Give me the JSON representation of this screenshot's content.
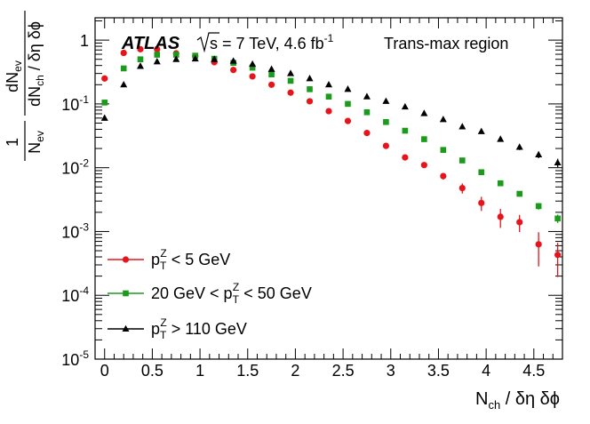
{
  "chart_data": {
    "type": "scatter",
    "experiment": "ATLAS",
    "energy_label": "s = 7 TeV, 4.6 fb",
    "energy_sup": "-1",
    "region_label": "Trans-max region",
    "xlabel": {
      "base": "N",
      "sub": "ch",
      "rest": " / δη δϕ"
    },
    "ylabel": {
      "numerator": "1",
      "denom_base": "N",
      "denom_sub": "ev",
      "frac_num_base": "dN",
      "frac_num_sub": "ev",
      "frac_den_pre": "dN",
      "frac_den_sub": "ch",
      "frac_den_rest": " / δη δϕ"
    },
    "xlim": [
      -0.1,
      4.8
    ],
    "ylim_log10": [
      -5,
      0.35
    ],
    "x_ticks": [
      0,
      0.5,
      1,
      1.5,
      2,
      2.5,
      3,
      3.5,
      4,
      4.5
    ],
    "x_tick_labels": [
      "0",
      "0.5",
      "1",
      "1.5",
      "2",
      "2.5",
      "3",
      "3.5",
      "4",
      "4.5"
    ],
    "y_ticks": [
      {
        "value": 1,
        "label": "1",
        "sup": ""
      },
      {
        "value": 0.1,
        "label": "10",
        "sup": "-1"
      },
      {
        "value": 0.01,
        "label": "10",
        "sup": "-2"
      },
      {
        "value": 0.001,
        "label": "10",
        "sup": "-3"
      },
      {
        "value": 0.0001,
        "label": "10",
        "sup": "-4"
      },
      {
        "value": 1e-05,
        "label": "10",
        "sup": "-5"
      }
    ],
    "x": [
      0,
      0.2,
      0.375,
      0.55,
      0.75,
      0.95,
      1.15,
      1.35,
      1.55,
      1.75,
      1.95,
      2.15,
      2.35,
      2.55,
      2.75,
      2.95,
      3.15,
      3.35,
      3.55,
      3.75,
      3.95,
      4.15,
      4.35,
      4.55,
      4.75
    ],
    "series": [
      {
        "name": "pTZ < 5 GeV",
        "color": "#e8141b",
        "marker": "circle",
        "legend": {
          "pre": "p",
          "sub": "T",
          "sup": "Z",
          "post": " < 5 GeV"
        },
        "values": [
          0.25,
          0.63,
          0.72,
          0.72,
          0.62,
          0.56,
          0.45,
          0.34,
          0.27,
          0.2,
          0.15,
          0.11,
          0.077,
          0.054,
          0.035,
          0.022,
          0.0145,
          0.011,
          0.0074,
          0.0048,
          0.0028,
          0.0017,
          0.0014,
          0.00063,
          0.00043
        ],
        "errors_rel": [
          0.02,
          0.02,
          0.02,
          0.02,
          0.02,
          0.02,
          0.02,
          0.02,
          0.02,
          0.02,
          0.03,
          0.03,
          0.03,
          0.04,
          0.05,
          0.06,
          0.07,
          0.08,
          0.12,
          0.18,
          0.25,
          0.33,
          0.3,
          0.55,
          0.55
        ]
      },
      {
        "name": "20 GeV < pTZ < 50 GeV",
        "color": "#1a9b1a",
        "marker": "square",
        "legend": {
          "pre": "20 GeV < p",
          "sub": "T",
          "sup": "Z",
          "post": " < 50 GeV"
        },
        "values": [
          0.105,
          0.36,
          0.5,
          0.59,
          0.59,
          0.57,
          0.51,
          0.44,
          0.37,
          0.29,
          0.23,
          0.17,
          0.13,
          0.1,
          0.074,
          0.052,
          0.038,
          0.028,
          0.019,
          0.013,
          0.0085,
          0.0057,
          0.0039,
          0.0025,
          0.0016
        ],
        "errors_rel": [
          0.02,
          0.02,
          0.02,
          0.02,
          0.02,
          0.02,
          0.02,
          0.02,
          0.02,
          0.02,
          0.02,
          0.02,
          0.02,
          0.02,
          0.03,
          0.03,
          0.03,
          0.04,
          0.04,
          0.05,
          0.06,
          0.08,
          0.1,
          0.12,
          0.15
        ]
      },
      {
        "name": "pTZ > 110 GeV",
        "color": "#000000",
        "marker": "triangle",
        "legend": {
          "pre": "p",
          "sub": "T",
          "sup": "Z",
          "post": " >  110 GeV"
        },
        "values": [
          0.06,
          0.2,
          0.39,
          0.46,
          0.5,
          0.51,
          0.5,
          0.47,
          0.42,
          0.35,
          0.3,
          0.25,
          0.2,
          0.17,
          0.13,
          0.11,
          0.09,
          0.071,
          0.057,
          0.044,
          0.037,
          0.028,
          0.021,
          0.016,
          0.012
        ],
        "errors_rel": [
          0.05,
          0.03,
          0.02,
          0.02,
          0.02,
          0.02,
          0.02,
          0.02,
          0.02,
          0.02,
          0.02,
          0.02,
          0.03,
          0.03,
          0.03,
          0.03,
          0.04,
          0.04,
          0.05,
          0.06,
          0.07,
          0.08,
          0.1,
          0.12,
          0.15
        ]
      }
    ]
  }
}
